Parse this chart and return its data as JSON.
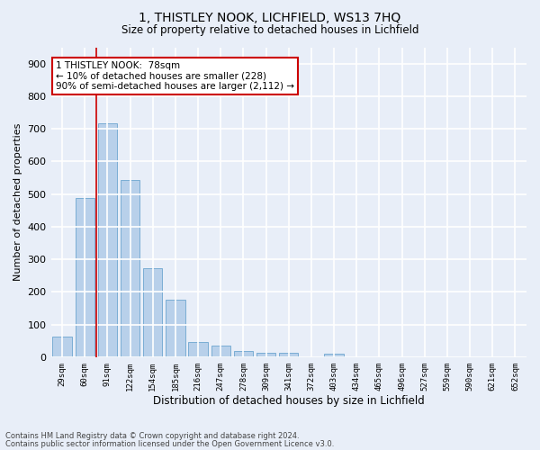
{
  "title1": "1, THISTLEY NOOK, LICHFIELD, WS13 7HQ",
  "title2": "Size of property relative to detached houses in Lichfield",
  "xlabel": "Distribution of detached houses by size in Lichfield",
  "ylabel": "Number of detached properties",
  "footnote1": "Contains HM Land Registry data © Crown copyright and database right 2024.",
  "footnote2": "Contains public sector information licensed under the Open Government Licence v3.0.",
  "categories": [
    "29sqm",
    "60sqm",
    "91sqm",
    "122sqm",
    "154sqm",
    "185sqm",
    "216sqm",
    "247sqm",
    "278sqm",
    "309sqm",
    "341sqm",
    "372sqm",
    "403sqm",
    "434sqm",
    "465sqm",
    "496sqm",
    "527sqm",
    "559sqm",
    "590sqm",
    "621sqm",
    "652sqm"
  ],
  "values": [
    62,
    487,
    717,
    543,
    272,
    175,
    47,
    35,
    18,
    14,
    14,
    0,
    10,
    0,
    0,
    0,
    0,
    0,
    0,
    0,
    0
  ],
  "bar_color": "#b8d0ea",
  "bar_edge_color": "#7aadd4",
  "background_color": "#e8eef8",
  "grid_color": "#ffffff",
  "vline_color": "#cc0000",
  "vline_pos": 1.5,
  "annotation_text": "1 THISTLEY NOOK:  78sqm\n← 10% of detached houses are smaller (228)\n90% of semi-detached houses are larger (2,112) →",
  "annotation_box_color": "#ffffff",
  "annotation_box_edge": "#cc0000",
  "ylim": [
    0,
    950
  ],
  "yticks": [
    0,
    100,
    200,
    300,
    400,
    500,
    600,
    700,
    800,
    900
  ],
  "title1_fontsize": 10,
  "title2_fontsize": 9
}
